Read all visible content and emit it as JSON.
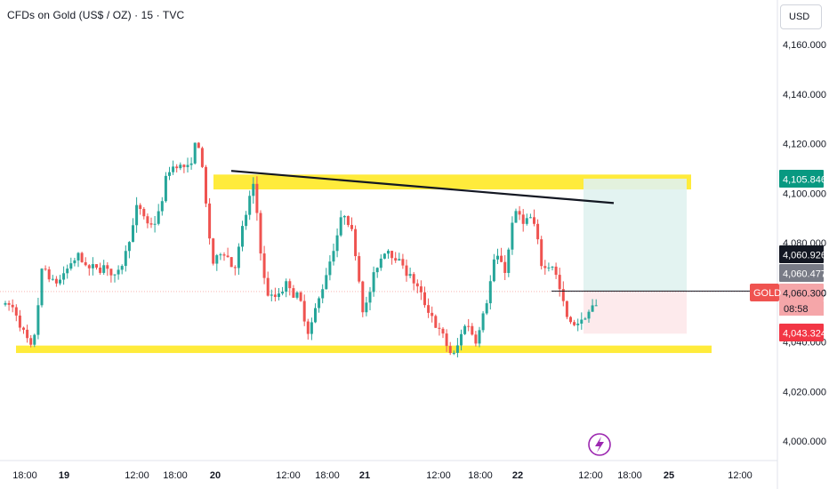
{
  "header": {
    "title": "CFDs on Gold (US$ / OZ) · 15 · TVC",
    "currency_button": "USD"
  },
  "colors": {
    "up": "#26a69a",
    "down": "#ef5350",
    "zone": "#ffeb3b",
    "target_area": "#e0f2ef",
    "stop_area": "#fde8ea",
    "trendline": "#131722",
    "grid_text": "#131722"
  },
  "icons": {
    "flash": "lightning-icon"
  },
  "chart_data": {
    "type": "candlestick",
    "title": "CFDs on Gold (US$ / OZ) · 15 · TVC",
    "ylim": [
      3990,
      4170
    ],
    "y_ticks": [
      "4,000.000",
      "4,020.000",
      "4,040.000",
      "4,060.000",
      "4,080.000",
      "4,100.000",
      "4,120.000",
      "4,140.000",
      "4,160.000"
    ],
    "y_tick_values": [
      4000,
      4020,
      4040,
      4060,
      4080,
      4100,
      4120,
      4140,
      4160
    ],
    "x_ticks": [
      "18:00",
      "19",
      "12:00",
      "18:00",
      "20",
      "12:00",
      "18:00",
      "21",
      "12:00",
      "18:00",
      "22",
      "12:00",
      "18:00",
      "25",
      "12:00"
    ],
    "x_tick_bold": [
      false,
      true,
      false,
      false,
      true,
      false,
      false,
      true,
      false,
      false,
      true,
      false,
      false,
      true,
      false
    ],
    "price_path": [
      [
        0,
        4055
      ],
      [
        10,
        4052
      ],
      [
        22,
        4040
      ],
      [
        30,
        4033
      ],
      [
        40,
        4074
      ],
      [
        52,
        4062
      ],
      [
        66,
        4068
      ],
      [
        80,
        4075
      ],
      [
        96,
        4068
      ],
      [
        110,
        4072
      ],
      [
        124,
        4064
      ],
      [
        136,
        4080
      ],
      [
        148,
        4096
      ],
      [
        160,
        4085
      ],
      [
        172,
        4092
      ],
      [
        182,
        4111
      ],
      [
        196,
        4112
      ],
      [
        206,
        4108
      ],
      [
        216,
        4126
      ],
      [
        222,
        4102
      ],
      [
        232,
        4066
      ],
      [
        244,
        4080
      ],
      [
        256,
        4068
      ],
      [
        268,
        4090
      ],
      [
        278,
        4106
      ],
      [
        290,
        4060
      ],
      [
        300,
        4056
      ],
      [
        314,
        4064
      ],
      [
        328,
        4058
      ],
      [
        340,
        4042
      ],
      [
        354,
        4062
      ],
      [
        366,
        4076
      ],
      [
        380,
        4094
      ],
      [
        392,
        4078
      ],
      [
        402,
        4050
      ],
      [
        414,
        4068
      ],
      [
        428,
        4080
      ],
      [
        442,
        4072
      ],
      [
        456,
        4066
      ],
      [
        470,
        4054
      ],
      [
        482,
        4048
      ],
      [
        494,
        4038
      ],
      [
        504,
        4033
      ],
      [
        516,
        4050
      ],
      [
        528,
        4040
      ],
      [
        540,
        4058
      ],
      [
        550,
        4076
      ],
      [
        562,
        4068
      ],
      [
        570,
        4094
      ],
      [
        582,
        4088
      ],
      [
        592,
        4090
      ],
      [
        602,
        4068
      ],
      [
        614,
        4074
      ],
      [
        622,
        4060
      ],
      [
        632,
        4046
      ],
      [
        644,
        4048
      ],
      [
        656,
        4052
      ],
      [
        666,
        4056
      ],
      [
        672,
        4061
      ]
    ],
    "current_price": 4060.3,
    "symbol_tag": "GOLD",
    "countdown": "08:58",
    "price_labels": [
      {
        "value": 4105.846,
        "text": "4,105.846",
        "role": "target"
      },
      {
        "value": 4060.926,
        "text": "4,060.926",
        "role": "crosshair"
      },
      {
        "value": 4060.477,
        "text": "4,060.477",
        "role": "entry"
      },
      {
        "value": 4060.3,
        "text": "4,060.300",
        "role": "last"
      },
      {
        "value": 4043.324,
        "text": "4,043.324",
        "role": "stop"
      }
    ],
    "zones": [
      {
        "name": "resistance-zone",
        "y_top": 4107.5,
        "y_bottom": 4101.5
      },
      {
        "name": "support-zone",
        "y_top": 4038.5,
        "y_bottom": 4035.5
      }
    ],
    "trendline": {
      "from": [
        4109
      ],
      "to": [
        4096
      ]
    },
    "position": {
      "target": 4105.846,
      "entry": 4060.477,
      "stop": 4043.324
    },
    "grid": false
  }
}
